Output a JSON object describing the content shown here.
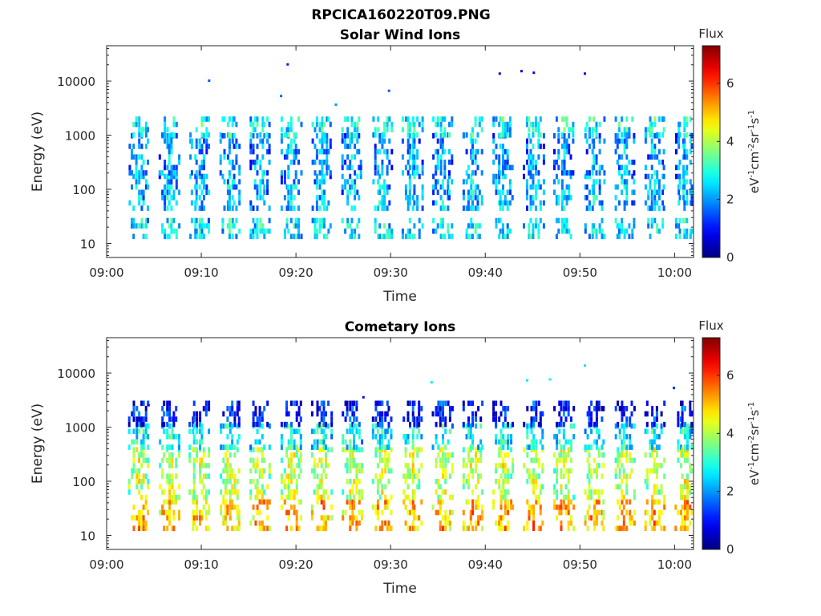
{
  "figure_title": "RPCICA160220T09.PNG",
  "colorbar": {
    "title": "Flux",
    "unit_base": "eV",
    "unit_parts": [
      "eV",
      "-1",
      "cm",
      "-2",
      "sr",
      "-1",
      "s",
      "-1"
    ],
    "ticks": [
      0,
      2,
      4,
      6
    ],
    "range": [
      0,
      7.3
    ],
    "colormap": "jet"
  },
  "chart_data": [
    {
      "type": "heatmap",
      "title": "Solar Wind Ions",
      "xlabel": "Time",
      "ylabel": "Energy (eV)",
      "yscale": "log",
      "ylim": [
        5.5,
        45000
      ],
      "xlim": [
        "09:00",
        "10:02"
      ],
      "xticks": [
        "09:00",
        "09:10",
        "09:20",
        "09:30",
        "09:40",
        "09:50",
        "10:00"
      ],
      "yticks": [
        "10",
        "100",
        "1000",
        "10000"
      ],
      "clim": [
        0,
        7.3
      ],
      "scan_times_min": [
        3.3,
        6.5,
        9.7,
        12.9,
        16.1,
        19.4,
        22.6,
        25.8,
        29.0,
        32.2,
        35.4,
        38.6,
        41.8,
        45.0,
        48.2,
        51.4,
        54.6,
        57.8,
        61.0
      ],
      "bands": [
        {
          "emin": 12,
          "emax": 25,
          "value": 2.8
        },
        {
          "emin": 40,
          "emax": 180,
          "value": 2.4
        },
        {
          "emin": 180,
          "emax": 900,
          "value": 2.2
        },
        {
          "emin": 900,
          "emax": 2200,
          "value": 3.0
        }
      ],
      "sparse_points": [
        {
          "t": 19.0,
          "e": 20000,
          "value": 1.2
        },
        {
          "t": 10.7,
          "e": 10000,
          "value": 1.5
        },
        {
          "t": 41.4,
          "e": 13500,
          "value": 0.8
        },
        {
          "t": 43.7,
          "e": 15000,
          "value": 0.7
        },
        {
          "t": 45.0,
          "e": 14000,
          "value": 0.9
        },
        {
          "t": 50.4,
          "e": 13500,
          "value": 0.8
        },
        {
          "t": 29.7,
          "e": 6500,
          "value": 1.5
        },
        {
          "t": 18.3,
          "e": 5200,
          "value": 1.6
        },
        {
          "t": 24.1,
          "e": 3600,
          "value": 2.0
        }
      ]
    },
    {
      "type": "heatmap",
      "title": "Cometary Ions",
      "xlabel": "Time",
      "ylabel": "Energy (eV)",
      "yscale": "log",
      "ylim": [
        5.5,
        45000
      ],
      "xlim": [
        "09:00",
        "10:02"
      ],
      "xticks": [
        "09:00",
        "09:10",
        "09:20",
        "09:30",
        "09:40",
        "09:50",
        "10:00"
      ],
      "yticks": [
        "10",
        "100",
        "1000",
        "10000"
      ],
      "clim": [
        0,
        7.3
      ],
      "scan_times_min": [
        3.3,
        6.5,
        9.7,
        12.9,
        16.1,
        19.4,
        22.6,
        25.8,
        29.0,
        32.2,
        35.4,
        38.6,
        41.8,
        45.0,
        48.2,
        51.4,
        54.6,
        57.8,
        61.0
      ],
      "bands": [
        {
          "emin": 12,
          "emax": 45,
          "value": 5.3
        },
        {
          "emin": 45,
          "emax": 380,
          "value": 4.3
        },
        {
          "emin": 380,
          "emax": 1000,
          "value": 3.0
        },
        {
          "emin": 1000,
          "emax": 2500,
          "value": 1.2
        }
      ],
      "sparse_points": [
        {
          "t": 44.3,
          "e": 7200,
          "value": 2.6
        },
        {
          "t": 46.7,
          "e": 7500,
          "value": 2.8
        },
        {
          "t": 50.4,
          "e": 13500,
          "value": 2.5
        },
        {
          "t": 34.2,
          "e": 6600,
          "value": 2.6
        },
        {
          "t": 59.8,
          "e": 5200,
          "value": 1.2
        },
        {
          "t": 27.0,
          "e": 3500,
          "value": 1.0
        },
        {
          "t": 4.3,
          "e": 2500,
          "value": 1.0
        }
      ]
    }
  ]
}
